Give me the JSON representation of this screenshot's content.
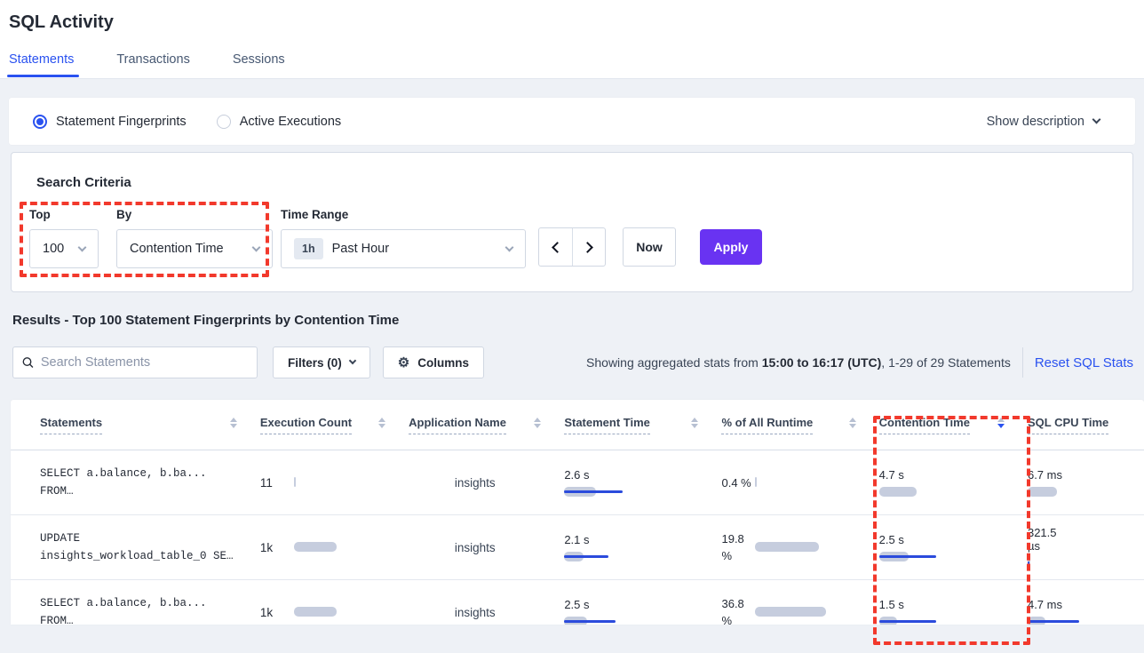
{
  "colors": {
    "accent_blue": "#2a52f0",
    "apply_purple": "#6933f2",
    "annotation_red": "#f2392c",
    "bar_gray": "#c6cdde",
    "bar_blue": "#2b4bdc"
  },
  "page": {
    "title": "SQL Activity"
  },
  "tabs": [
    {
      "label": "Statements"
    },
    {
      "label": "Transactions"
    },
    {
      "label": "Sessions"
    }
  ],
  "view_toggle": {
    "fingerprints": "Statement Fingerprints",
    "active_executions": "Active Executions",
    "show_description": "Show description"
  },
  "search_criteria": {
    "heading": "Search Criteria",
    "top_label": "Top",
    "top_value": "100",
    "by_label": "By",
    "by_value": "Contention Time",
    "time_range_label": "Time Range",
    "time_badge": "1h",
    "time_value": "Past Hour",
    "now": "Now",
    "apply": "Apply"
  },
  "results": {
    "heading": "Results - Top 100 Statement Fingerprints by Contention Time",
    "search_placeholder": "Search Statements",
    "filters": "Filters (0)",
    "columns": "Columns",
    "stats_prefix": "Showing aggregated stats from ",
    "stats_bold": "15:00 to 16:17 (UTC)",
    "stats_suffix": ", 1-29 of 29 Statements",
    "reset": "Reset SQL Stats"
  },
  "table": {
    "headers": [
      "Statements",
      "Execution Count",
      "Application Name",
      "Statement Time",
      "% of All Runtime",
      "Contention Time",
      "SQL CPU Time"
    ],
    "sorted_column": "Contention Time",
    "sort_direction": "desc",
    "rows": [
      {
        "sql1": "SELECT a.balance, b.ba...",
        "sql2": "FROM…",
        "exec": "11",
        "app": "insights",
        "stmt_time": "2.6 s",
        "pct1": "0.4 %",
        "pct2": "",
        "cont": "4.7 s",
        "cpu1": "6.7 ms",
        "cpu2": "",
        "bars": {
          "exec": 2,
          "stmt_g": 36,
          "stmt_b": 66,
          "pct": 2,
          "cont_g": 42,
          "cont_b": 0,
          "cpu_g": 33,
          "cpu_b": 0
        }
      },
      {
        "sql1": "UPDATE",
        "sql2": "insights_workload_table_0 SE…",
        "exec": "1k",
        "app": "insights",
        "stmt_time": "2.1 s",
        "pct1": "19.8",
        "pct2": "%",
        "cont": "2.5 s",
        "cpu1": "321.5",
        "cpu2": "µs",
        "bars": {
          "exec": 48,
          "stmt_g": 22,
          "stmt_b": 50,
          "pct": 72,
          "cont_g": 33,
          "cont_b": 64,
          "cpu_g": 3,
          "cpu_b": 2
        }
      },
      {
        "sql1": "SELECT a.balance, b.ba...",
        "sql2": "FROM…",
        "exec": "1k",
        "app": "insights",
        "stmt_time": "2.5 s",
        "pct1": "36.8",
        "pct2": "%",
        "cont": "1.5 s",
        "cpu1": "4.7 ms",
        "cpu2": "",
        "bars": {
          "exec": 48,
          "stmt_g": 26,
          "stmt_b": 58,
          "pct": 80,
          "cont_g": 20,
          "cont_b": 64,
          "cpu_g": 20,
          "cpu_b": 58
        }
      }
    ]
  }
}
